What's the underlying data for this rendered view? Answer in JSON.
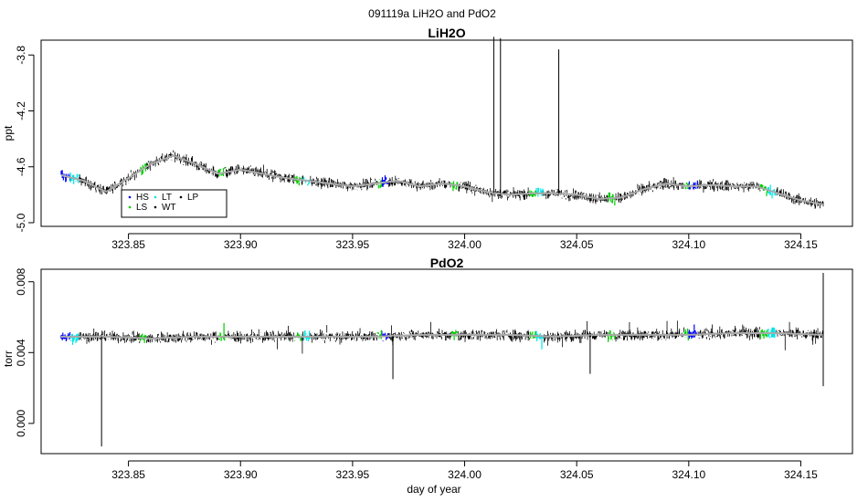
{
  "title": "091119a   LiH2O and PdO2",
  "chart_data": [
    {
      "type": "line",
      "title": "LiH2O",
      "xlabel": "",
      "ylabel": "ppt",
      "xlim": [
        323.82,
        324.16
      ],
      "ylim": [
        -5.0,
        -3.72
      ],
      "x_ticks": [
        "323.85",
        "323.90",
        "323.95",
        "324.00",
        "324.05",
        "324.10",
        "324.15"
      ],
      "y_ticks": [
        "-3.8",
        "-4.2",
        "-4.6",
        "-5.0"
      ],
      "colors": {
        "raw": "#000000",
        "smooth": "#aaaaaa",
        "HS": "#0000ff",
        "LS": "#00cc00",
        "LT": "#00e5e5",
        "WT": "#000000",
        "LP": "#000000"
      },
      "legend": {
        "placement": "bottom-left",
        "entries": [
          "HS",
          "LS",
          "LT",
          "WT",
          "LP"
        ]
      },
      "series": [
        {
          "x": [
            323.82,
            323.83,
            323.84,
            323.85,
            323.86,
            323.87,
            323.88,
            323.89,
            323.9,
            323.91,
            323.92,
            323.93,
            323.94,
            323.95,
            323.96,
            323.97,
            323.98,
            323.99,
            324.0,
            324.01,
            324.02,
            324.03,
            324.04,
            324.05,
            324.06,
            324.07,
            324.08,
            324.09,
            324.1,
            324.11,
            324.12,
            324.13,
            324.14,
            324.15,
            324.16
          ],
          "values": [
            -4.66,
            -4.7,
            -4.78,
            -4.68,
            -4.58,
            -4.52,
            -4.58,
            -4.65,
            -4.62,
            -4.65,
            -4.68,
            -4.7,
            -4.72,
            -4.74,
            -4.72,
            -4.7,
            -4.74,
            -4.72,
            -4.74,
            -4.78,
            -4.8,
            -4.79,
            -4.79,
            -4.8,
            -4.83,
            -4.82,
            -4.76,
            -4.72,
            -4.74,
            -4.73,
            -4.74,
            -4.74,
            -4.79,
            -4.84,
            -4.87
          ]
        }
      ],
      "spikes": [
        {
          "x": 324.013,
          "value": -3.67
        },
        {
          "x": 324.016,
          "value": -3.68
        },
        {
          "x": 324.042,
          "value": -3.76
        }
      ]
    },
    {
      "type": "line",
      "title": "PdO2",
      "xlabel": "day of year",
      "ylabel": "torr",
      "xlim": [
        323.82,
        324.16
      ],
      "ylim": [
        -0.0015,
        0.0085
      ],
      "x_ticks": [
        "323.85",
        "323.90",
        "323.95",
        "324.00",
        "324.05",
        "324.10",
        "324.15"
      ],
      "y_ticks": [
        "0.000",
        "0.004",
        "0.008"
      ],
      "series": [
        {
          "x": [
            323.82,
            323.84,
            323.86,
            323.88,
            323.9,
            323.92,
            323.94,
            323.96,
            323.98,
            324.0,
            324.02,
            324.04,
            324.06,
            324.08,
            324.1,
            324.12,
            324.14,
            324.16
          ],
          "values": [
            0.0049,
            0.0049,
            0.0048,
            0.0049,
            0.0049,
            0.0049,
            0.0049,
            0.0049,
            0.005,
            0.005,
            0.005,
            0.0049,
            0.005,
            0.005,
            0.005,
            0.0051,
            0.0051,
            0.005
          ]
        }
      ],
      "spikes": [
        {
          "x": 323.838,
          "value": -0.0013
        },
        {
          "x": 323.968,
          "value": 0.0025
        },
        {
          "x": 324.056,
          "value": 0.0028
        },
        {
          "x": 324.16,
          "value": 0.0085
        },
        {
          "x": 324.16,
          "value": 0.0021
        }
      ]
    }
  ],
  "segments": [
    {
      "start": 323.82,
      "end": 323.824,
      "mode": "HS"
    },
    {
      "start": 323.824,
      "end": 323.828,
      "mode": "LT"
    },
    {
      "start": 323.855,
      "end": 323.858,
      "mode": "LS"
    },
    {
      "start": 323.89,
      "end": 323.893,
      "mode": "LS"
    },
    {
      "start": 323.924,
      "end": 323.927,
      "mode": "LS"
    },
    {
      "start": 323.928,
      "end": 323.931,
      "mode": "LT"
    },
    {
      "start": 323.961,
      "end": 323.963,
      "mode": "LS"
    },
    {
      "start": 323.963,
      "end": 323.966,
      "mode": "HS"
    },
    {
      "start": 323.994,
      "end": 323.997,
      "mode": "LS"
    },
    {
      "start": 324.029,
      "end": 324.032,
      "mode": "LS"
    },
    {
      "start": 324.032,
      "end": 324.035,
      "mode": "LT"
    },
    {
      "start": 324.064,
      "end": 324.067,
      "mode": "LS"
    },
    {
      "start": 324.098,
      "end": 324.1,
      "mode": "LS"
    },
    {
      "start": 324.1,
      "end": 324.104,
      "mode": "HS"
    },
    {
      "start": 324.132,
      "end": 324.135,
      "mode": "LS"
    },
    {
      "start": 324.135,
      "end": 324.139,
      "mode": "LT"
    }
  ]
}
